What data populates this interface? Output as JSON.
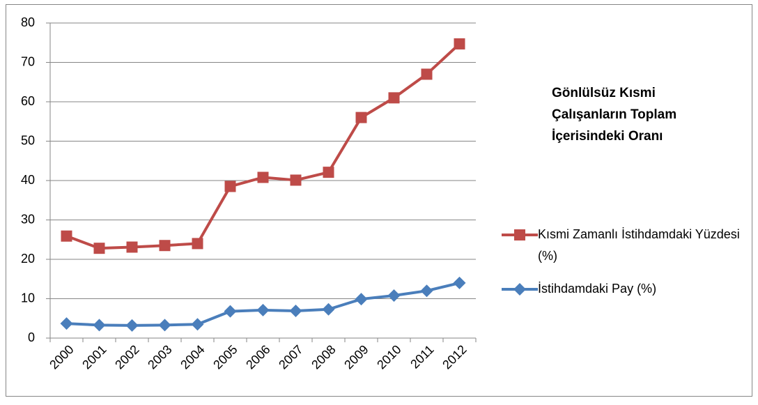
{
  "chart_data": {
    "type": "line",
    "title": "Gönlülsüz Kısmi Çalışanların Toplam İçerisindeki Oranı",
    "categories": [
      "2000",
      "2001",
      "2002",
      "2003",
      "2004",
      "2005",
      "2006",
      "2007",
      "2008",
      "2009",
      "2010",
      "2011",
      "2012"
    ],
    "series": [
      {
        "name": "Kısmi Zamanlı İstihdamdaki Yüzdesi (%)",
        "color": "#be4b48",
        "marker": "square",
        "values": [
          25.9,
          22.8,
          23.1,
          23.5,
          24.0,
          38.5,
          40.8,
          40.1,
          42.1,
          56.0,
          61.0,
          67.0,
          74.7
        ]
      },
      {
        "name": "İstihdamdaki Pay (%)",
        "color": "#4a7ebb",
        "marker": "diamond",
        "values": [
          3.7,
          3.3,
          3.2,
          3.3,
          3.5,
          6.8,
          7.1,
          6.9,
          7.3,
          9.9,
          10.8,
          12.0,
          14.0
        ]
      }
    ],
    "ylim": [
      0,
      80
    ],
    "yticks": [
      0,
      10,
      20,
      30,
      40,
      50,
      60,
      70,
      80
    ],
    "grid": true,
    "legend": "right"
  }
}
